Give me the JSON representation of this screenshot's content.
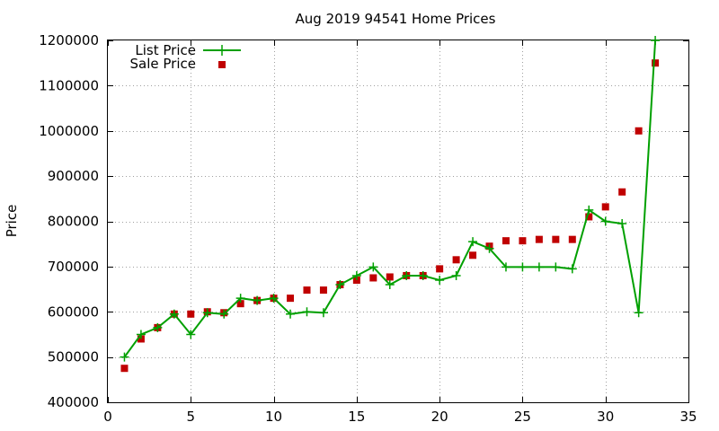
{
  "chart_data": {
    "type": "line",
    "title": "Aug 2019 94541 Home Prices",
    "xlabel": "",
    "ylabel": "Price",
    "xlim": [
      0,
      35
    ],
    "ylim": [
      400000,
      1200000
    ],
    "x_ticks": [
      "0",
      "5",
      "10",
      "15",
      "20",
      "25",
      "30",
      "35"
    ],
    "y_ticks": [
      "400000",
      "500000",
      "600000",
      "700000",
      "800000",
      "900000",
      "1000000",
      "1100000",
      "1200000"
    ],
    "grid": true,
    "legend_position": "top-left",
    "series": [
      {
        "name": "List Price",
        "style": "line-plus",
        "color": "#00a000",
        "x": [
          1,
          2,
          3,
          4,
          5,
          6,
          7,
          8,
          9,
          10,
          11,
          12,
          13,
          14,
          15,
          16,
          17,
          18,
          19,
          20,
          21,
          22,
          23,
          24,
          25,
          26,
          27,
          28,
          29,
          30,
          31,
          32,
          33
        ],
        "values": [
          500000,
          550000,
          565000,
          595000,
          550000,
          598000,
          595000,
          630000,
          625000,
          630000,
          595000,
          600000,
          598000,
          660000,
          680000,
          699000,
          660000,
          680000,
          680000,
          670000,
          680000,
          755000,
          740000,
          699000,
          699000,
          699000,
          699000,
          695000,
          825000,
          800000,
          795000,
          598000,
          1200000
        ]
      },
      {
        "name": "Sale Price",
        "style": "square",
        "color": "#c00000",
        "x": [
          1,
          2,
          3,
          4,
          5,
          6,
          7,
          8,
          9,
          10,
          11,
          12,
          13,
          14,
          15,
          16,
          17,
          18,
          19,
          20,
          21,
          22,
          23,
          24,
          25,
          26,
          27,
          28,
          29,
          30,
          31,
          32,
          33
        ],
        "values": [
          475000,
          540000,
          565000,
          595000,
          595000,
          600000,
          598000,
          618000,
          625000,
          630000,
          630000,
          648000,
          648000,
          660000,
          670000,
          675000,
          677000,
          680000,
          680000,
          695000,
          715000,
          725000,
          745000,
          757000,
          757000,
          760000,
          760000,
          760000,
          810000,
          832000,
          865000,
          1000000,
          1150000
        ]
      }
    ]
  }
}
